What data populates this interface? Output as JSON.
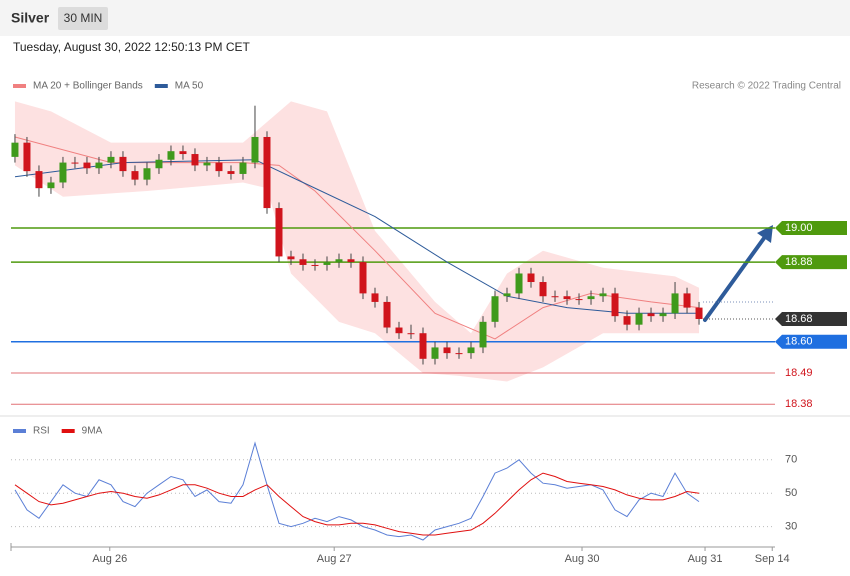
{
  "header": {
    "instrument": "Silver",
    "interval": "30 MIN",
    "timestamp": "Tuesday, August 30, 2022 12:50:13 PM CET"
  },
  "chart_data": [
    {
      "type": "candlestick",
      "credit": "Research © 2022 Trading Central",
      "xlim": [
        -0.33,
        63.33
      ],
      "ylim": [
        18.36,
        19.45
      ],
      "x": [
        0,
        1,
        2,
        3,
        4,
        5,
        6,
        7,
        8,
        9,
        10,
        11,
        12,
        13,
        14,
        15,
        16,
        17,
        18,
        19,
        20,
        21,
        22,
        23,
        24,
        25,
        26,
        27,
        28,
        29,
        30,
        31,
        32,
        33,
        34,
        35,
        36,
        37,
        38,
        39,
        40,
        41,
        42,
        43,
        44,
        45,
        46,
        47,
        48,
        49,
        50,
        51,
        52,
        53,
        54,
        55,
        56,
        57
      ],
      "open": [
        19.25,
        19.3,
        19.2,
        19.14,
        19.16,
        19.23,
        19.23,
        19.21,
        19.23,
        19.25,
        19.2,
        19.17,
        19.21,
        19.24,
        19.27,
        19.26,
        19.22,
        19.23,
        19.2,
        19.19,
        19.23,
        19.32,
        19.07,
        18.9,
        18.89,
        18.87,
        18.87,
        18.88,
        18.89,
        18.88,
        18.77,
        18.74,
        18.65,
        18.63,
        18.63,
        18.54,
        18.58,
        18.56,
        18.56,
        18.58,
        18.67,
        18.76,
        18.77,
        18.84,
        18.81,
        18.76,
        18.76,
        18.75,
        18.75,
        18.76,
        18.77,
        18.69,
        18.66,
        18.7,
        18.69,
        18.7,
        18.77,
        18.72
      ],
      "high": [
        19.33,
        19.32,
        19.22,
        19.18,
        19.25,
        19.25,
        19.25,
        19.25,
        19.27,
        19.27,
        19.22,
        19.23,
        19.26,
        19.29,
        19.29,
        19.28,
        19.25,
        19.25,
        19.22,
        19.25,
        19.43,
        19.34,
        19.09,
        18.92,
        18.91,
        18.89,
        18.9,
        18.91,
        18.91,
        18.9,
        18.79,
        18.76,
        18.67,
        18.66,
        18.65,
        18.6,
        18.6,
        18.58,
        18.6,
        18.69,
        18.78,
        18.79,
        18.86,
        18.86,
        18.83,
        18.78,
        18.78,
        18.77,
        18.78,
        18.79,
        18.79,
        18.71,
        18.72,
        18.72,
        18.72,
        18.81,
        18.79,
        18.74
      ],
      "low": [
        19.23,
        19.18,
        19.11,
        19.12,
        19.14,
        19.21,
        19.19,
        19.19,
        19.21,
        19.18,
        19.15,
        19.15,
        19.19,
        19.22,
        19.24,
        19.2,
        19.2,
        19.18,
        19.17,
        19.17,
        19.21,
        19.05,
        18.88,
        18.87,
        18.85,
        18.85,
        18.85,
        18.86,
        18.86,
        18.75,
        18.72,
        18.63,
        18.61,
        18.61,
        18.52,
        18.52,
        18.54,
        18.54,
        18.54,
        18.56,
        18.65,
        18.74,
        18.75,
        18.79,
        18.74,
        18.74,
        18.73,
        18.73,
        18.73,
        18.74,
        18.67,
        18.64,
        18.64,
        18.67,
        18.67,
        18.68,
        18.7,
        18.66
      ],
      "close": [
        19.3,
        19.2,
        19.14,
        19.16,
        19.23,
        19.23,
        19.21,
        19.23,
        19.25,
        19.2,
        19.17,
        19.21,
        19.24,
        19.27,
        19.26,
        19.22,
        19.23,
        19.2,
        19.19,
        19.23,
        19.32,
        19.07,
        18.9,
        18.89,
        18.87,
        18.87,
        18.88,
        18.89,
        18.88,
        18.77,
        18.74,
        18.65,
        18.63,
        18.63,
        18.54,
        18.58,
        18.56,
        18.56,
        18.58,
        18.67,
        18.76,
        18.77,
        18.84,
        18.81,
        18.76,
        18.76,
        18.75,
        18.75,
        18.76,
        18.77,
        18.69,
        18.66,
        18.7,
        18.69,
        18.7,
        18.77,
        18.72,
        18.68
      ],
      "up_color": "#3f9a1c",
      "down_color": "#d0141c",
      "bands": {
        "color": "#fde1e1",
        "upper": {
          "x": [
            0,
            3,
            8,
            19,
            23,
            26,
            30,
            35,
            38,
            41,
            44,
            49,
            55,
            57
          ],
          "values": [
            19.445,
            19.41,
            19.3,
            19.3,
            19.445,
            19.41,
            18.99,
            18.74,
            18.63,
            18.84,
            18.92,
            18.86,
            18.83,
            18.79
          ]
        },
        "lower": {
          "x": [
            0,
            4,
            11,
            19,
            21,
            23,
            27,
            30,
            34,
            37,
            41,
            44,
            49,
            57
          ],
          "values": [
            19.22,
            19.11,
            19.13,
            19.16,
            19.14,
            18.84,
            18.67,
            18.63,
            18.49,
            18.48,
            18.46,
            18.51,
            18.63,
            18.63
          ]
        }
      },
      "series": [
        {
          "name": "MA 20 + Bollinger Bands",
          "color": "#f08080",
          "x": [
            0,
            8,
            19,
            22,
            25,
            30,
            35,
            40,
            44,
            48,
            53,
            57
          ],
          "values": [
            19.32,
            19.23,
            19.23,
            19.22,
            19.13,
            18.92,
            18.7,
            18.61,
            18.72,
            18.77,
            18.74,
            18.72
          ]
        },
        {
          "name": "MA 50",
          "color": "#2e5b9a",
          "x": [
            0,
            9,
            20,
            24,
            30,
            36,
            41,
            46,
            51,
            57
          ],
          "values": [
            19.18,
            19.23,
            19.24,
            19.16,
            19.04,
            18.88,
            18.76,
            18.72,
            18.7,
            18.7
          ]
        }
      ],
      "levels": [
        {
          "value": 19.0,
          "label": "19.00",
          "color": "#4f9a0e",
          "boxed": true
        },
        {
          "value": 18.88,
          "label": "18.88",
          "color": "#4f9a0e",
          "boxed": true
        },
        {
          "value": 18.68,
          "label": "18.68",
          "color": "#333333",
          "boxed": true
        },
        {
          "value": 18.6,
          "label": "18.60",
          "color": "#1f6fe0",
          "boxed": true
        },
        {
          "value": 18.49,
          "label": "18.49",
          "color": "#d0141c",
          "boxed": false
        },
        {
          "value": 18.38,
          "label": "18.38",
          "color": "#d0141c",
          "boxed": false
        }
      ]
    },
    {
      "type": "line",
      "xlim": [
        -0.33,
        63.33
      ],
      "ylim": [
        19,
        95
      ],
      "yticks": [
        70,
        50,
        30
      ],
      "xticks": [
        {
          "value": 7.9,
          "label": "Aug 26"
        },
        {
          "value": 26.6,
          "label": "Aug 27"
        },
        {
          "value": 47.25,
          "label": "Aug 30"
        },
        {
          "value": 57.5,
          "label": "Aug 31"
        },
        {
          "value": 63.1,
          "label": "Sep 14"
        }
      ],
      "x": [
        0,
        1,
        2,
        3,
        4,
        5,
        6,
        7,
        8,
        9,
        10,
        11,
        12,
        13,
        14,
        15,
        16,
        17,
        18,
        19,
        20,
        21,
        22,
        23,
        24,
        25,
        26,
        27,
        28,
        29,
        30,
        31,
        32,
        33,
        34,
        35,
        36,
        37,
        38,
        39,
        40,
        41,
        42,
        43,
        44,
        45,
        46,
        47,
        48,
        49,
        50,
        51,
        52,
        53,
        54,
        55,
        56,
        57
      ],
      "series": [
        {
          "name": "RSI",
          "color": "#5b7fd6",
          "values": [
            52,
            40,
            35,
            45,
            55,
            50,
            48,
            58,
            55,
            45,
            42,
            50,
            55,
            60,
            58,
            48,
            52,
            45,
            44,
            55,
            80,
            55,
            32,
            30,
            32,
            35,
            33,
            36,
            34,
            30,
            28,
            25,
            24,
            25,
            22,
            28,
            30,
            32,
            35,
            48,
            62,
            65,
            70,
            62,
            56,
            55,
            53,
            54,
            55,
            52,
            40,
            36,
            46,
            50,
            48,
            62,
            50,
            45
          ]
        },
        {
          "name": "9MA",
          "color": "#e01010",
          "values": [
            55,
            50,
            45,
            43,
            44,
            46,
            48,
            50,
            51,
            50,
            48,
            47,
            49,
            52,
            55,
            55,
            53,
            50,
            48,
            48,
            52,
            55,
            48,
            42,
            36,
            33,
            31,
            31,
            32,
            32,
            31,
            29,
            27,
            26,
            25,
            25,
            26,
            27,
            28,
            32,
            38,
            45,
            52,
            58,
            62,
            60,
            57,
            56,
            55,
            54,
            52,
            49,
            47,
            46,
            46,
            48,
            51,
            50
          ]
        }
      ]
    }
  ]
}
